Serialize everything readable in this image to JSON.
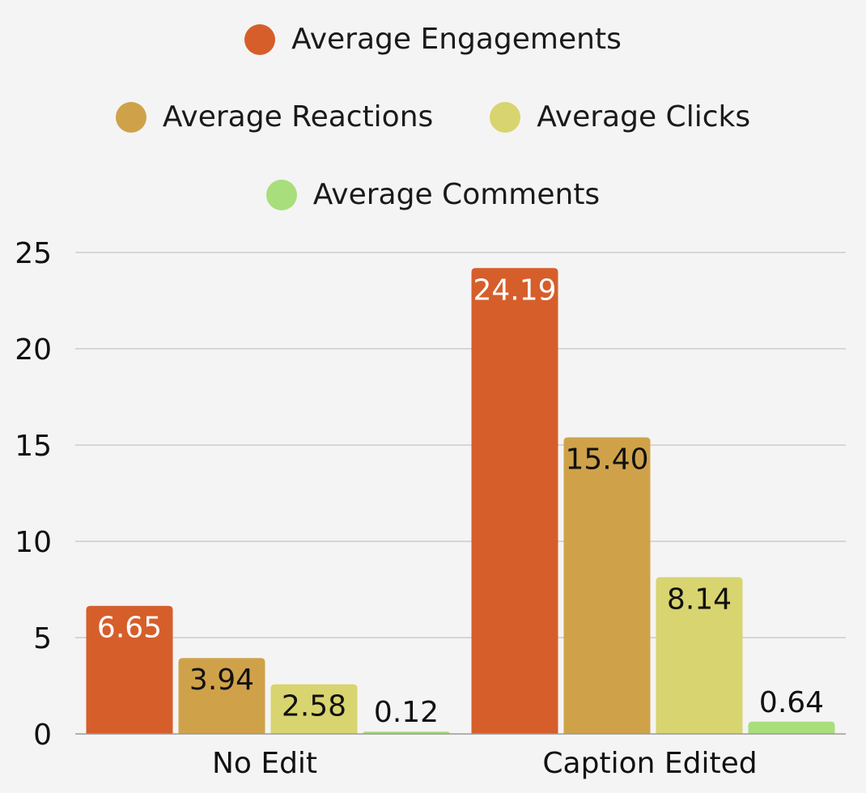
{
  "chart_data": {
    "type": "bar",
    "categories": [
      "No Edit",
      "Caption Edited"
    ],
    "series": [
      {
        "name": "Average Engagements",
        "values": [
          6.65,
          24.19
        ],
        "labels": [
          "6.65",
          "24.19"
        ],
        "color": "#d65e2b",
        "label_color": "#ffffff"
      },
      {
        "name": "Average Reactions",
        "values": [
          3.94,
          15.4
        ],
        "labels": [
          "3.94",
          "15.40"
        ],
        "color": "#cfa24a",
        "label_color": "#111111"
      },
      {
        "name": "Average Clicks",
        "values": [
          2.58,
          8.14
        ],
        "labels": [
          "2.58",
          "8.14"
        ],
        "color": "#d8d46f",
        "label_color": "#111111"
      },
      {
        "name": "Average Comments",
        "values": [
          0.12,
          0.64
        ],
        "labels": [
          "0.12",
          "0.64"
        ],
        "color": "#a8de7c",
        "label_color": "#111111"
      }
    ],
    "yticks": [
      "0",
      "5",
      "10",
      "15",
      "20",
      "25"
    ],
    "ylim": [
      0,
      25
    ],
    "grid": true,
    "legend_position": "top"
  }
}
